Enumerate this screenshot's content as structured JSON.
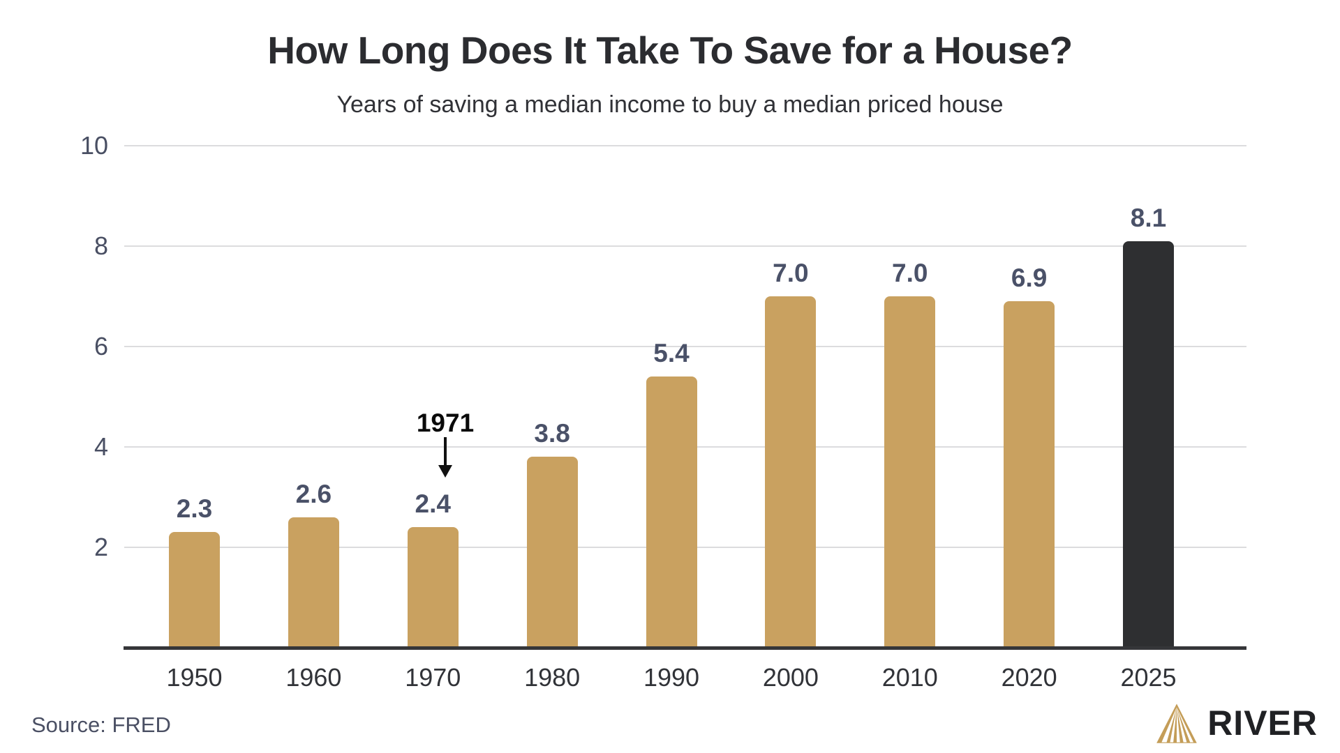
{
  "chart_data": {
    "type": "bar",
    "title": "How Long Does It Take To Save for a House?",
    "subtitle": "Years of saving a median income to buy a median priced house",
    "categories": [
      "1950",
      "1960",
      "1970",
      "1980",
      "1990",
      "2000",
      "2010",
      "2020",
      "2025"
    ],
    "values": [
      2.3,
      2.6,
      2.4,
      3.8,
      5.4,
      7.0,
      7.0,
      6.9,
      8.1
    ],
    "value_labels": [
      "2.3",
      "2.6",
      "2.4",
      "3.8",
      "5.4",
      "7.0",
      "7.0",
      "6.9",
      "8.1"
    ],
    "highlight_index": 8,
    "ylabel": "",
    "xlabel": "",
    "ylim": [
      0,
      10
    ],
    "yticks": [
      2,
      4,
      6,
      8,
      10
    ],
    "grid": true,
    "legend": "none",
    "annotation": {
      "label": "1971",
      "target_category": "1970"
    },
    "colors": {
      "bar": "#c9a160",
      "highlight_bar": "#2e2f31",
      "grid": "#dcdcde",
      "axis": "#353639",
      "value_label": "#4a5168",
      "tick_label": "#494f63",
      "title": "#2b2c30",
      "gold": "#c49d58"
    }
  },
  "footer": {
    "source": "Source: FRED",
    "logo_text": "RIVER"
  }
}
